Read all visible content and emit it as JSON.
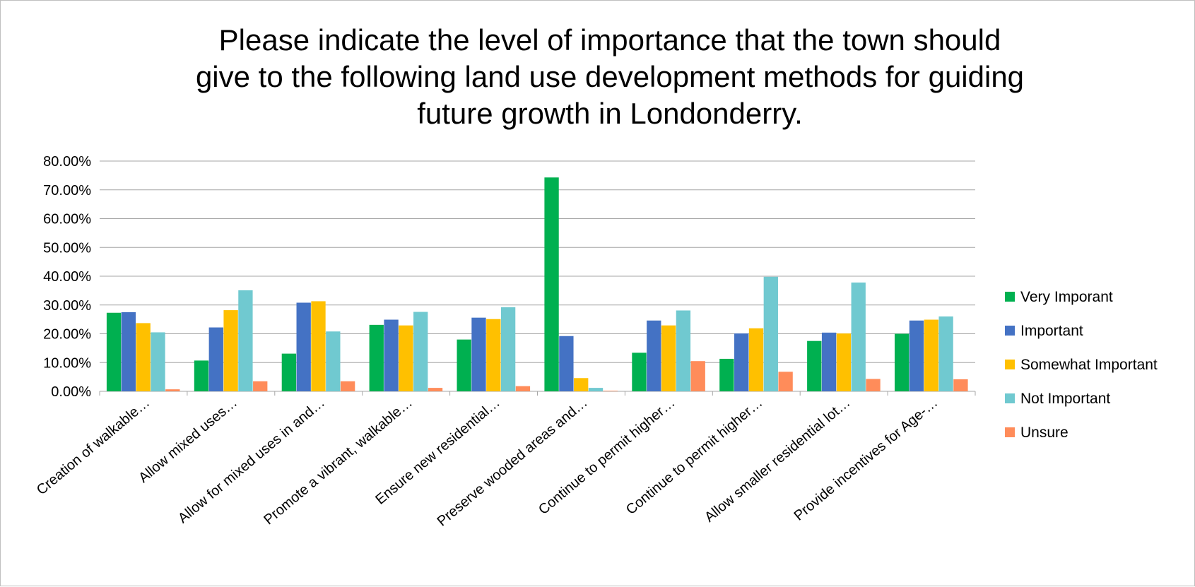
{
  "chart_data": {
    "type": "bar",
    "title": "Please indicate the level of importance that the town should give to the following land use development methods for guiding future growth in Londonderry.",
    "title_lines": [
      "Please indicate the level of importance that the town should",
      "give to the following land use development methods for guiding",
      "future growth in Londonderry."
    ],
    "xlabel": "",
    "ylabel": "",
    "ylim": [
      0,
      0.8
    ],
    "y_ticks": [
      "0.00%",
      "10.00%",
      "20.00%",
      "30.00%",
      "40.00%",
      "50.00%",
      "60.00%",
      "70.00%",
      "80.00%"
    ],
    "y_tick_values": [
      0,
      0.1,
      0.2,
      0.3,
      0.4,
      0.5,
      0.6,
      0.7,
      0.8
    ],
    "grid": true,
    "legend_position": "right",
    "categories": [
      "Creation of walkable…",
      "Allow mixed uses…",
      "Allow for mixed uses in and…",
      "Promote a vibrant, walkable…",
      "Ensure new residential…",
      "Preserve wooded areas and…",
      "Continue to permit higher…",
      "Continue to permit higher…",
      "Allow smaller residential lot…",
      "Provide incentives for Age-…"
    ],
    "series": [
      {
        "name": "Very Imporant",
        "color": "#00b050",
        "values": [
          0.273,
          0.107,
          0.131,
          0.231,
          0.18,
          0.743,
          0.134,
          0.113,
          0.175,
          0.2
        ]
      },
      {
        "name": "Important",
        "color": "#4472c4",
        "values": [
          0.275,
          0.222,
          0.308,
          0.249,
          0.256,
          0.192,
          0.246,
          0.201,
          0.204,
          0.246
        ]
      },
      {
        "name": "Somewhat Important",
        "color": "#ffc000",
        "values": [
          0.237,
          0.282,
          0.313,
          0.229,
          0.251,
          0.046,
          0.229,
          0.219,
          0.201,
          0.249
        ]
      },
      {
        "name": "Not Important",
        "color": "#70c9d0",
        "values": [
          0.205,
          0.351,
          0.208,
          0.276,
          0.292,
          0.012,
          0.281,
          0.398,
          0.378,
          0.26
        ]
      },
      {
        "name": "Unsure",
        "color": "#ff8c5a",
        "values": [
          0.007,
          0.035,
          0.035,
          0.012,
          0.018,
          0.002,
          0.105,
          0.068,
          0.043,
          0.042
        ]
      }
    ]
  }
}
